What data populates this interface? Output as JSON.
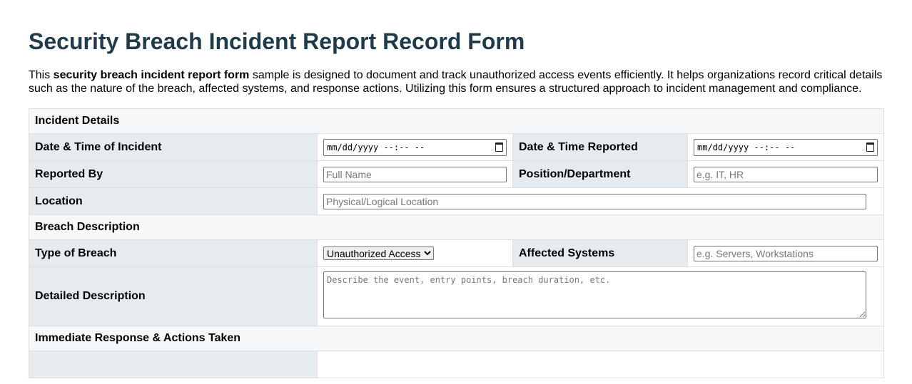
{
  "title": "Security Breach Incident Report Record Form",
  "intro": {
    "pre": "This ",
    "bold": "security breach incident report form",
    "post": " sample is designed to document and track unauthorized access events efficiently. It helps organizations record critical details such as the nature of the breach, affected systems, and response actions. Utilizing this form ensures a structured approach to incident management and compliance."
  },
  "sections": {
    "incident": "Incident Details",
    "breach": "Breach Description",
    "response": "Immediate Response & Actions Taken"
  },
  "fields": {
    "incident_dt": {
      "label": "Date & Time of Incident",
      "value": "mm/dd/yyyy --:-- --"
    },
    "reported_dt": {
      "label": "Date & Time Reported",
      "value": "mm/dd/yyyy --:-- --"
    },
    "reported_by": {
      "label": "Reported By",
      "placeholder": "Full Name"
    },
    "position": {
      "label": "Position/Department",
      "placeholder": "e.g. IT, HR"
    },
    "location": {
      "label": "Location",
      "placeholder": "Physical/Logical Location"
    },
    "type": {
      "label": "Type of Breach",
      "value": "Unauthorized Access"
    },
    "systems": {
      "label": "Affected Systems",
      "placeholder": "e.g. Servers, Workstations"
    },
    "description": {
      "label": "Detailed Description",
      "placeholder": "Describe the event, entry points, breach duration, etc."
    }
  }
}
